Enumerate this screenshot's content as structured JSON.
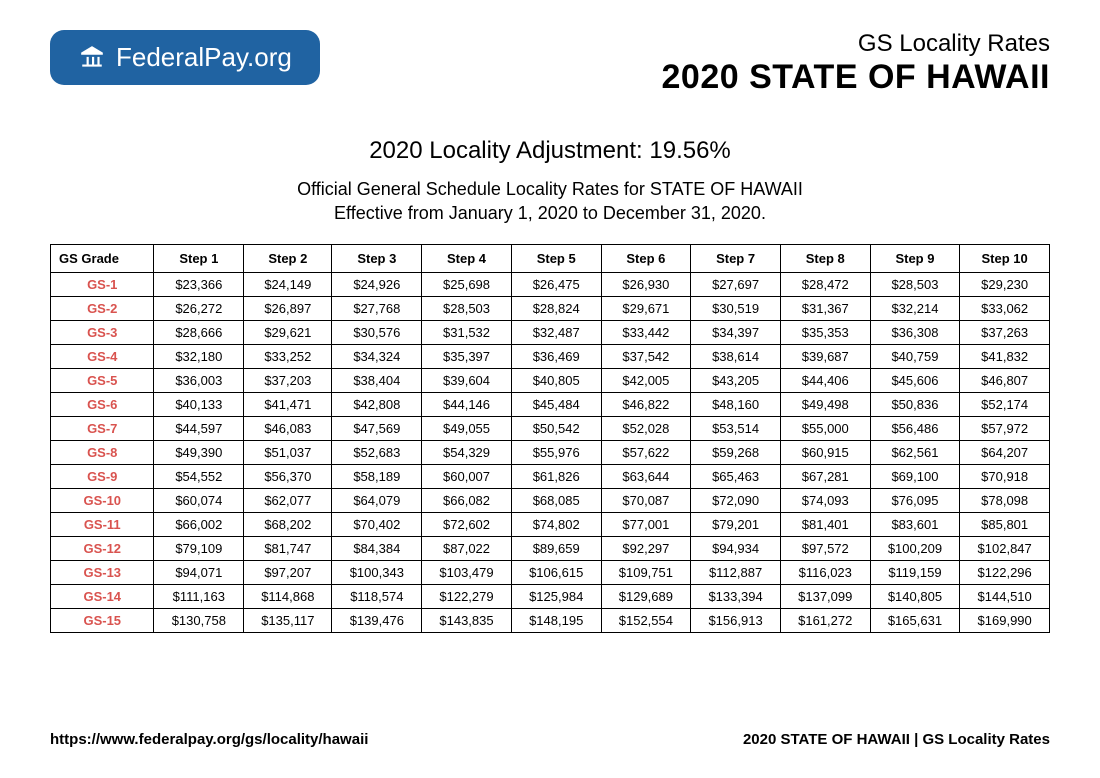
{
  "logo": {
    "text_bold": "Federal",
    "text_light": "Pay.org"
  },
  "header": {
    "small_title": "GS Locality Rates",
    "large_title": "2020 STATE OF HAWAII"
  },
  "subtitle": {
    "adjustment": "2020 Locality Adjustment: 19.56%",
    "description_line1": "Official General Schedule Locality Rates for STATE OF HAWAII",
    "description_line2": "Effective from January 1, 2020 to December 31, 2020."
  },
  "table": {
    "columns": [
      "GS Grade",
      "Step 1",
      "Step 2",
      "Step 3",
      "Step 4",
      "Step 5",
      "Step 6",
      "Step 7",
      "Step 8",
      "Step 9",
      "Step 10"
    ],
    "rows": [
      [
        "GS-1",
        "$23,366",
        "$24,149",
        "$24,926",
        "$25,698",
        "$26,475",
        "$26,930",
        "$27,697",
        "$28,472",
        "$28,503",
        "$29,230"
      ],
      [
        "GS-2",
        "$26,272",
        "$26,897",
        "$27,768",
        "$28,503",
        "$28,824",
        "$29,671",
        "$30,519",
        "$31,367",
        "$32,214",
        "$33,062"
      ],
      [
        "GS-3",
        "$28,666",
        "$29,621",
        "$30,576",
        "$31,532",
        "$32,487",
        "$33,442",
        "$34,397",
        "$35,353",
        "$36,308",
        "$37,263"
      ],
      [
        "GS-4",
        "$32,180",
        "$33,252",
        "$34,324",
        "$35,397",
        "$36,469",
        "$37,542",
        "$38,614",
        "$39,687",
        "$40,759",
        "$41,832"
      ],
      [
        "GS-5",
        "$36,003",
        "$37,203",
        "$38,404",
        "$39,604",
        "$40,805",
        "$42,005",
        "$43,205",
        "$44,406",
        "$45,606",
        "$46,807"
      ],
      [
        "GS-6",
        "$40,133",
        "$41,471",
        "$42,808",
        "$44,146",
        "$45,484",
        "$46,822",
        "$48,160",
        "$49,498",
        "$50,836",
        "$52,174"
      ],
      [
        "GS-7",
        "$44,597",
        "$46,083",
        "$47,569",
        "$49,055",
        "$50,542",
        "$52,028",
        "$53,514",
        "$55,000",
        "$56,486",
        "$57,972"
      ],
      [
        "GS-8",
        "$49,390",
        "$51,037",
        "$52,683",
        "$54,329",
        "$55,976",
        "$57,622",
        "$59,268",
        "$60,915",
        "$62,561",
        "$64,207"
      ],
      [
        "GS-9",
        "$54,552",
        "$56,370",
        "$58,189",
        "$60,007",
        "$61,826",
        "$63,644",
        "$65,463",
        "$67,281",
        "$69,100",
        "$70,918"
      ],
      [
        "GS-10",
        "$60,074",
        "$62,077",
        "$64,079",
        "$66,082",
        "$68,085",
        "$70,087",
        "$72,090",
        "$74,093",
        "$76,095",
        "$78,098"
      ],
      [
        "GS-11",
        "$66,002",
        "$68,202",
        "$70,402",
        "$72,602",
        "$74,802",
        "$77,001",
        "$79,201",
        "$81,401",
        "$83,601",
        "$85,801"
      ],
      [
        "GS-12",
        "$79,109",
        "$81,747",
        "$84,384",
        "$87,022",
        "$89,659",
        "$92,297",
        "$94,934",
        "$97,572",
        "$100,209",
        "$102,847"
      ],
      [
        "GS-13",
        "$94,071",
        "$97,207",
        "$100,343",
        "$103,479",
        "$106,615",
        "$109,751",
        "$112,887",
        "$116,023",
        "$119,159",
        "$122,296"
      ],
      [
        "GS-14",
        "$111,163",
        "$114,868",
        "$118,574",
        "$122,279",
        "$125,984",
        "$129,689",
        "$133,394",
        "$137,099",
        "$140,805",
        "$144,510"
      ],
      [
        "GS-15",
        "$130,758",
        "$135,117",
        "$139,476",
        "$143,835",
        "$148,195",
        "$152,554",
        "$156,913",
        "$161,272",
        "$165,631",
        "$169,990"
      ]
    ]
  },
  "footer": {
    "url": "https://www.federalpay.org/gs/locality/hawaii",
    "right": "2020 STATE OF HAWAII | GS Locality Rates"
  }
}
